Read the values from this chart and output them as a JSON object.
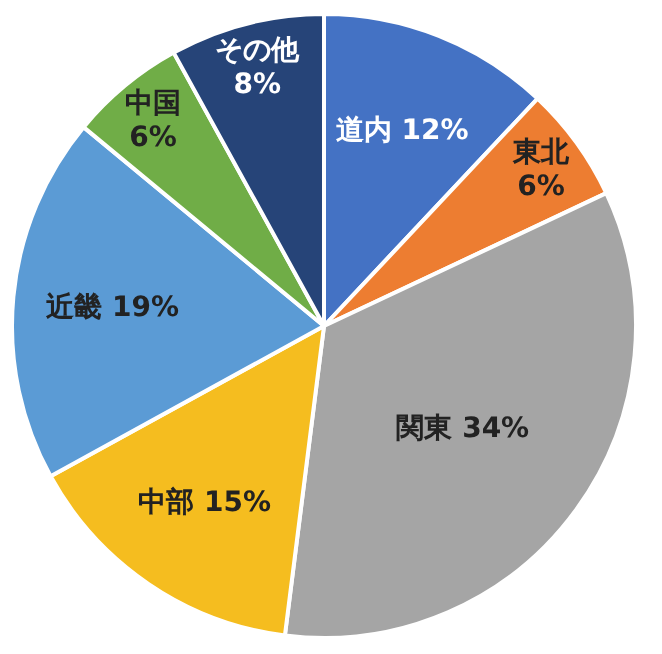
{
  "chart_data": {
    "type": "pie",
    "categories": [
      "道内",
      "東北",
      "関東",
      "中部",
      "近畿",
      "中国",
      "その他"
    ],
    "values": [
      12,
      6,
      34,
      15,
      19,
      6,
      8
    ],
    "value_labels": [
      "12%",
      "6%",
      "34%",
      "15%",
      "19%",
      "6%",
      "8%"
    ],
    "colors": [
      "#4472c4",
      "#ed7d31",
      "#a5a5a5",
      "#f5bd1f",
      "#5b9bd5",
      "#70ad47",
      "#264478"
    ]
  }
}
